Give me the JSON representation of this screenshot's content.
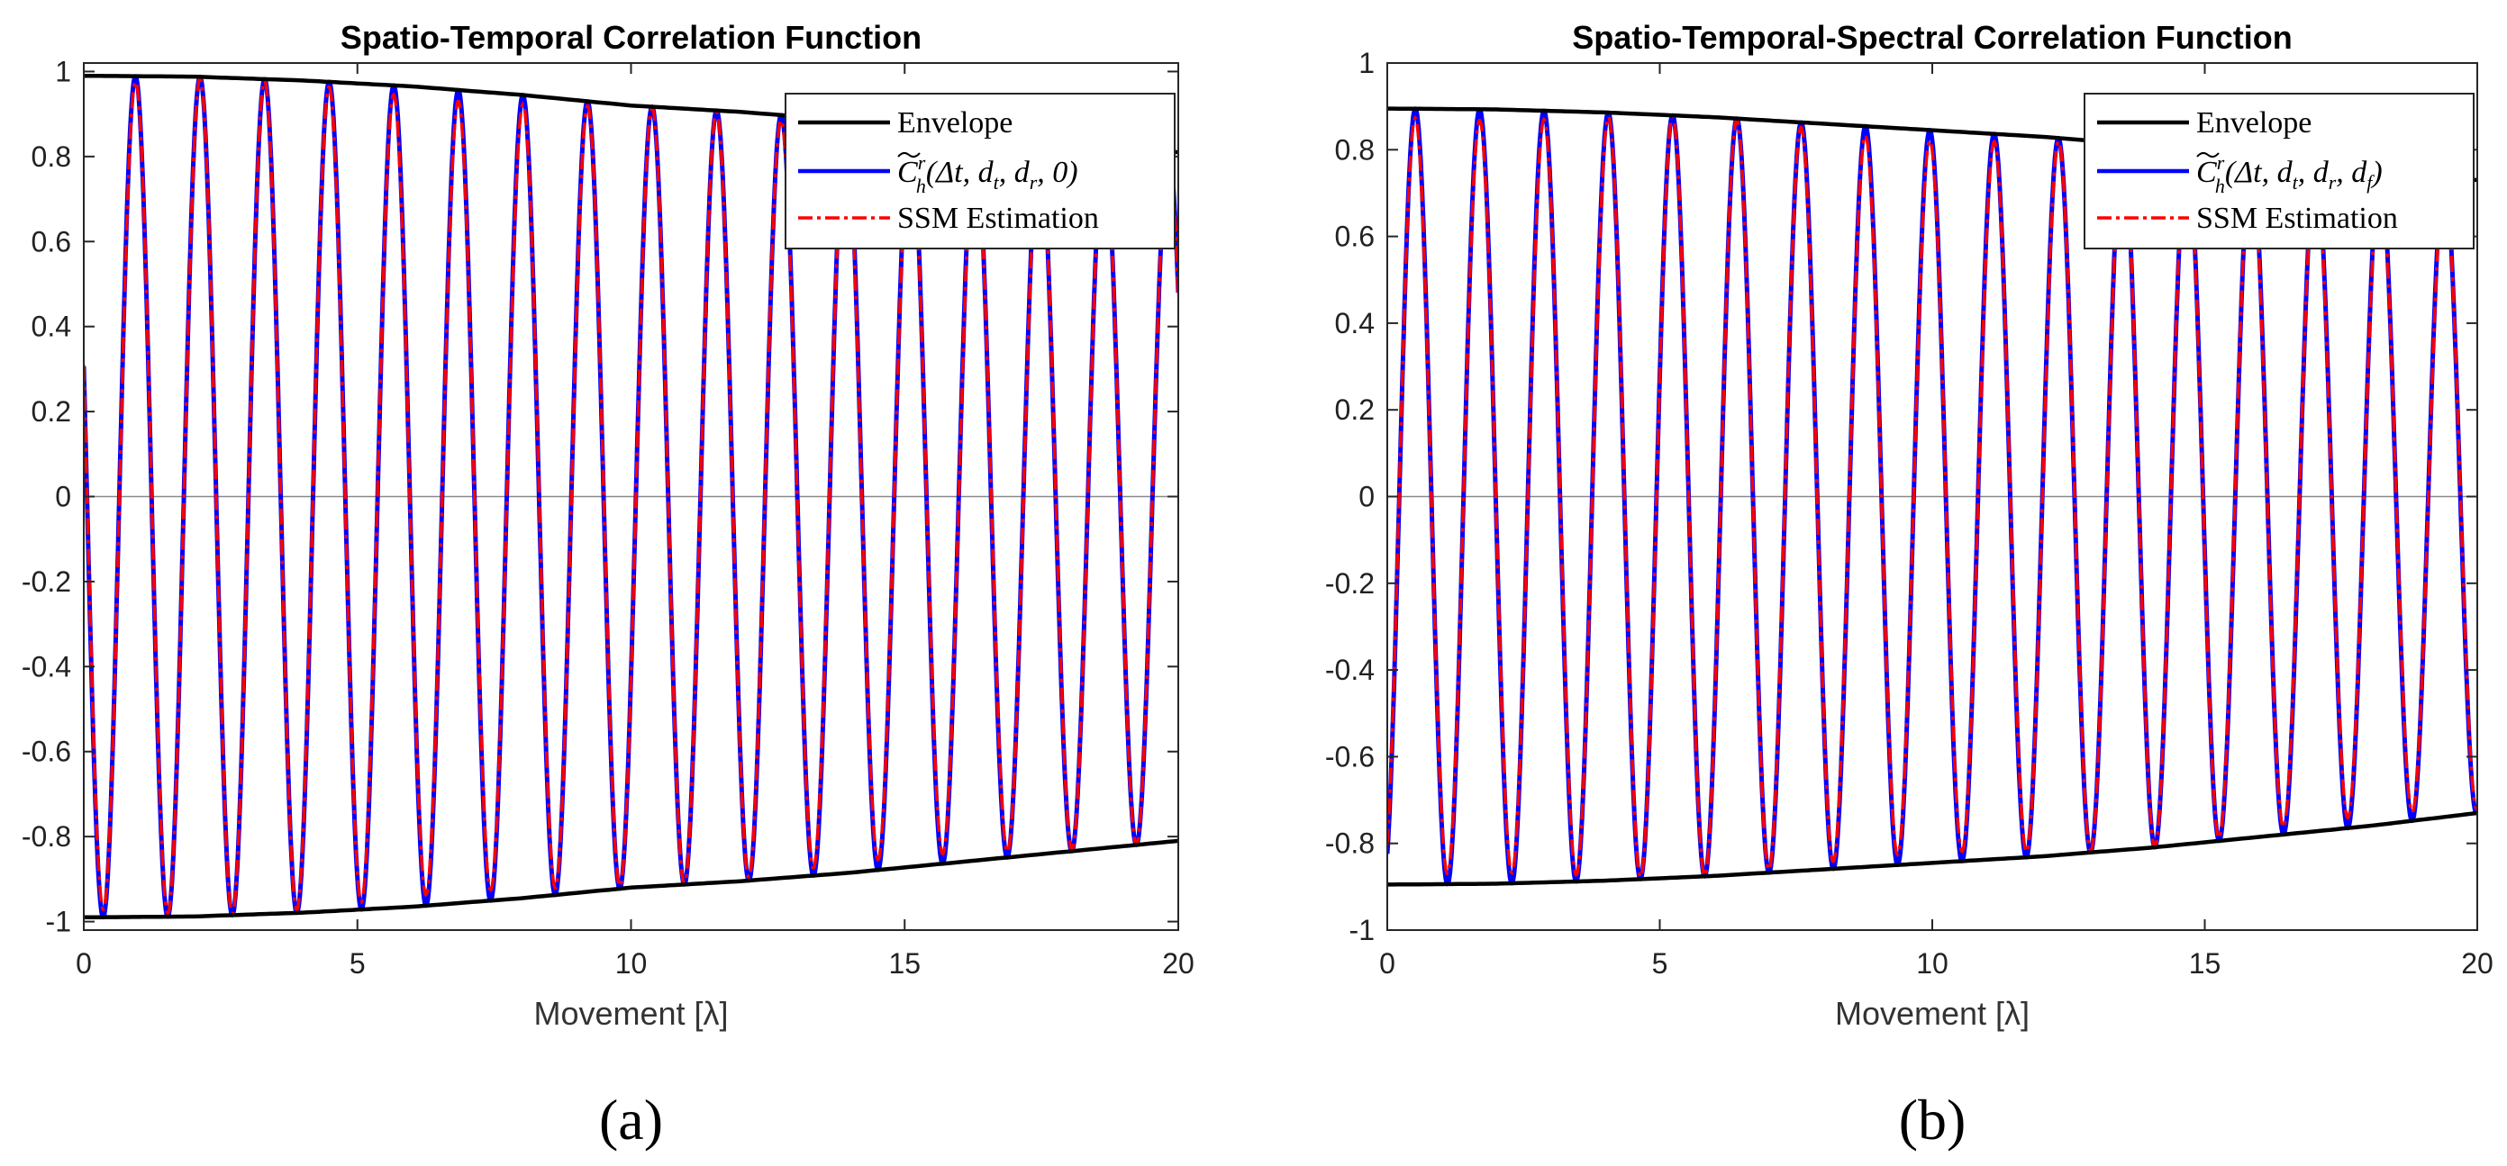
{
  "colors": {
    "envelope": "#000000",
    "correlation": "#0000ff",
    "ssm": "#ff0000",
    "zero_line": "#8a8a8a",
    "axes": "#262626"
  },
  "chart_data": [
    {
      "type": "line",
      "panel_label": "(a)",
      "title": "Spatio-Temporal Correlation Function",
      "xlabel": "Movement  [λ]",
      "ylabel": "",
      "xlim": [
        0,
        20
      ],
      "ylim": [
        -1.02,
        1.02
      ],
      "xticks": [
        0,
        5,
        10,
        15,
        20
      ],
      "xtick_labels": [
        "0",
        "5",
        "10",
        "15",
        "20"
      ],
      "yticks": [
        1,
        0.8,
        0.6,
        0.4,
        0.2,
        0,
        -0.2,
        -0.4,
        -0.6,
        -0.8,
        -1
      ],
      "ytick_labels": [
        "1",
        "0.8",
        "0.6",
        "0.4",
        "0.2",
        "0",
        "-0.2",
        "-0.4",
        "-0.6",
        "-0.8",
        "-1"
      ],
      "legend_position": "top-right",
      "series": [
        {
          "name": "Envelope",
          "role": "envelope",
          "x": [
            0,
            2,
            4,
            6,
            8,
            10,
            12,
            14,
            16,
            18,
            20
          ],
          "values": [
            0.99,
            0.988,
            0.979,
            0.965,
            0.945,
            0.92,
            0.905,
            0.885,
            0.86,
            0.835,
            0.81
          ]
        },
        {
          "name": "C̃ʳₕ(Δt, dₜ, dᵣ, 0)",
          "legend_main": "C",
          "legend_sup": "r",
          "legend_sub": "h",
          "legend_args": "(Δt, d",
          "legend_args_parts": [
            "(Δt, d",
            "t",
            ", d",
            "r",
            ", 0)"
          ],
          "role": "signal",
          "x_start": 0,
          "x_end": 20,
          "period": 1.18,
          "phase_deg": 72,
          "amplitude_start": 0.99,
          "amplitude_end": 0.81
        },
        {
          "name": "SSM Estimation",
          "role": "estimate",
          "tracks": "C̃ʳₕ(Δt, dₜ, dᵣ, 0)"
        }
      ]
    },
    {
      "type": "line",
      "panel_label": "(b)",
      "title": "Spatio-Temporal-Spectral Correlation Function",
      "xlabel": "Movement  [λ]",
      "ylabel": "",
      "xlim": [
        0,
        20
      ],
      "ylim": [
        -1,
        1
      ],
      "xticks": [
        0,
        5,
        10,
        15,
        20
      ],
      "xtick_labels": [
        "0",
        "5",
        "10",
        "15",
        "20"
      ],
      "yticks": [
        1,
        0.8,
        0.6,
        0.4,
        0.2,
        0,
        -0.2,
        -0.4,
        -0.6,
        -0.8,
        -1
      ],
      "ytick_labels": [
        "1",
        "0.8",
        "0.6",
        "0.4",
        "0.2",
        "0",
        "-0.2",
        "-0.4",
        "-0.6",
        "-0.8",
        "-1"
      ],
      "legend_position": "top-right",
      "series": [
        {
          "name": "Envelope",
          "role": "envelope",
          "x": [
            0,
            2,
            4,
            6,
            8,
            10,
            12,
            14,
            16,
            18,
            20
          ],
          "values": [
            0.895,
            0.893,
            0.886,
            0.875,
            0.86,
            0.845,
            0.83,
            0.81,
            0.785,
            0.76,
            0.73
          ]
        },
        {
          "name": "C̃ʳₕ(Δt, dₜ, dᵣ, d_f)",
          "legend_main": "C",
          "legend_sup": "r",
          "legend_sub": "h",
          "legend_args_parts": [
            "(Δt, d",
            "t",
            ", d",
            "r",
            ", d",
            "f",
            ")"
          ],
          "role": "signal",
          "x_start": 0,
          "x_end": 20,
          "period": 1.18,
          "phase_deg": 203,
          "amplitude_start": 0.895,
          "amplitude_end": 0.73
        },
        {
          "name": "SSM Estimation",
          "role": "estimate",
          "tracks": "C̃ʳₕ(Δt, dₜ, dᵣ, d_f)"
        }
      ]
    }
  ]
}
